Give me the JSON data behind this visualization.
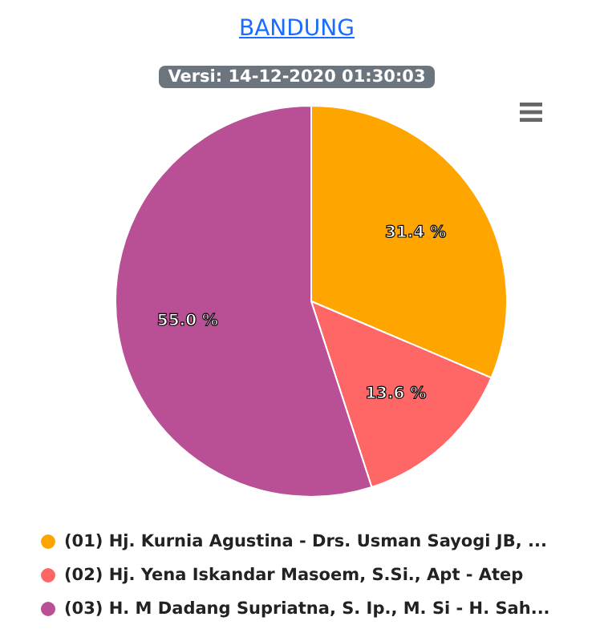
{
  "chart_data": {
    "type": "pie",
    "title": "BANDUNG",
    "subtitle": "Versi: 14-12-2020 01:30:03",
    "categories": [
      "(01) Hj. Kurnia Agustina - Drs. Usman Sayogi JB, ...",
      "(02) Hj. Yena Iskandar Masoem, S.Si., Apt - Atep",
      "(03) H. M Dadang Supriatna, S. Ip., M. Si - H. Sah..."
    ],
    "values": [
      31.4,
      13.6,
      55.0
    ],
    "colors": [
      "#ffa500",
      "#ff6666",
      "#b94f94"
    ],
    "value_labels": [
      "31.4 %",
      "13.6 %",
      "55.0 %"
    ],
    "legend": "bottom"
  }
}
